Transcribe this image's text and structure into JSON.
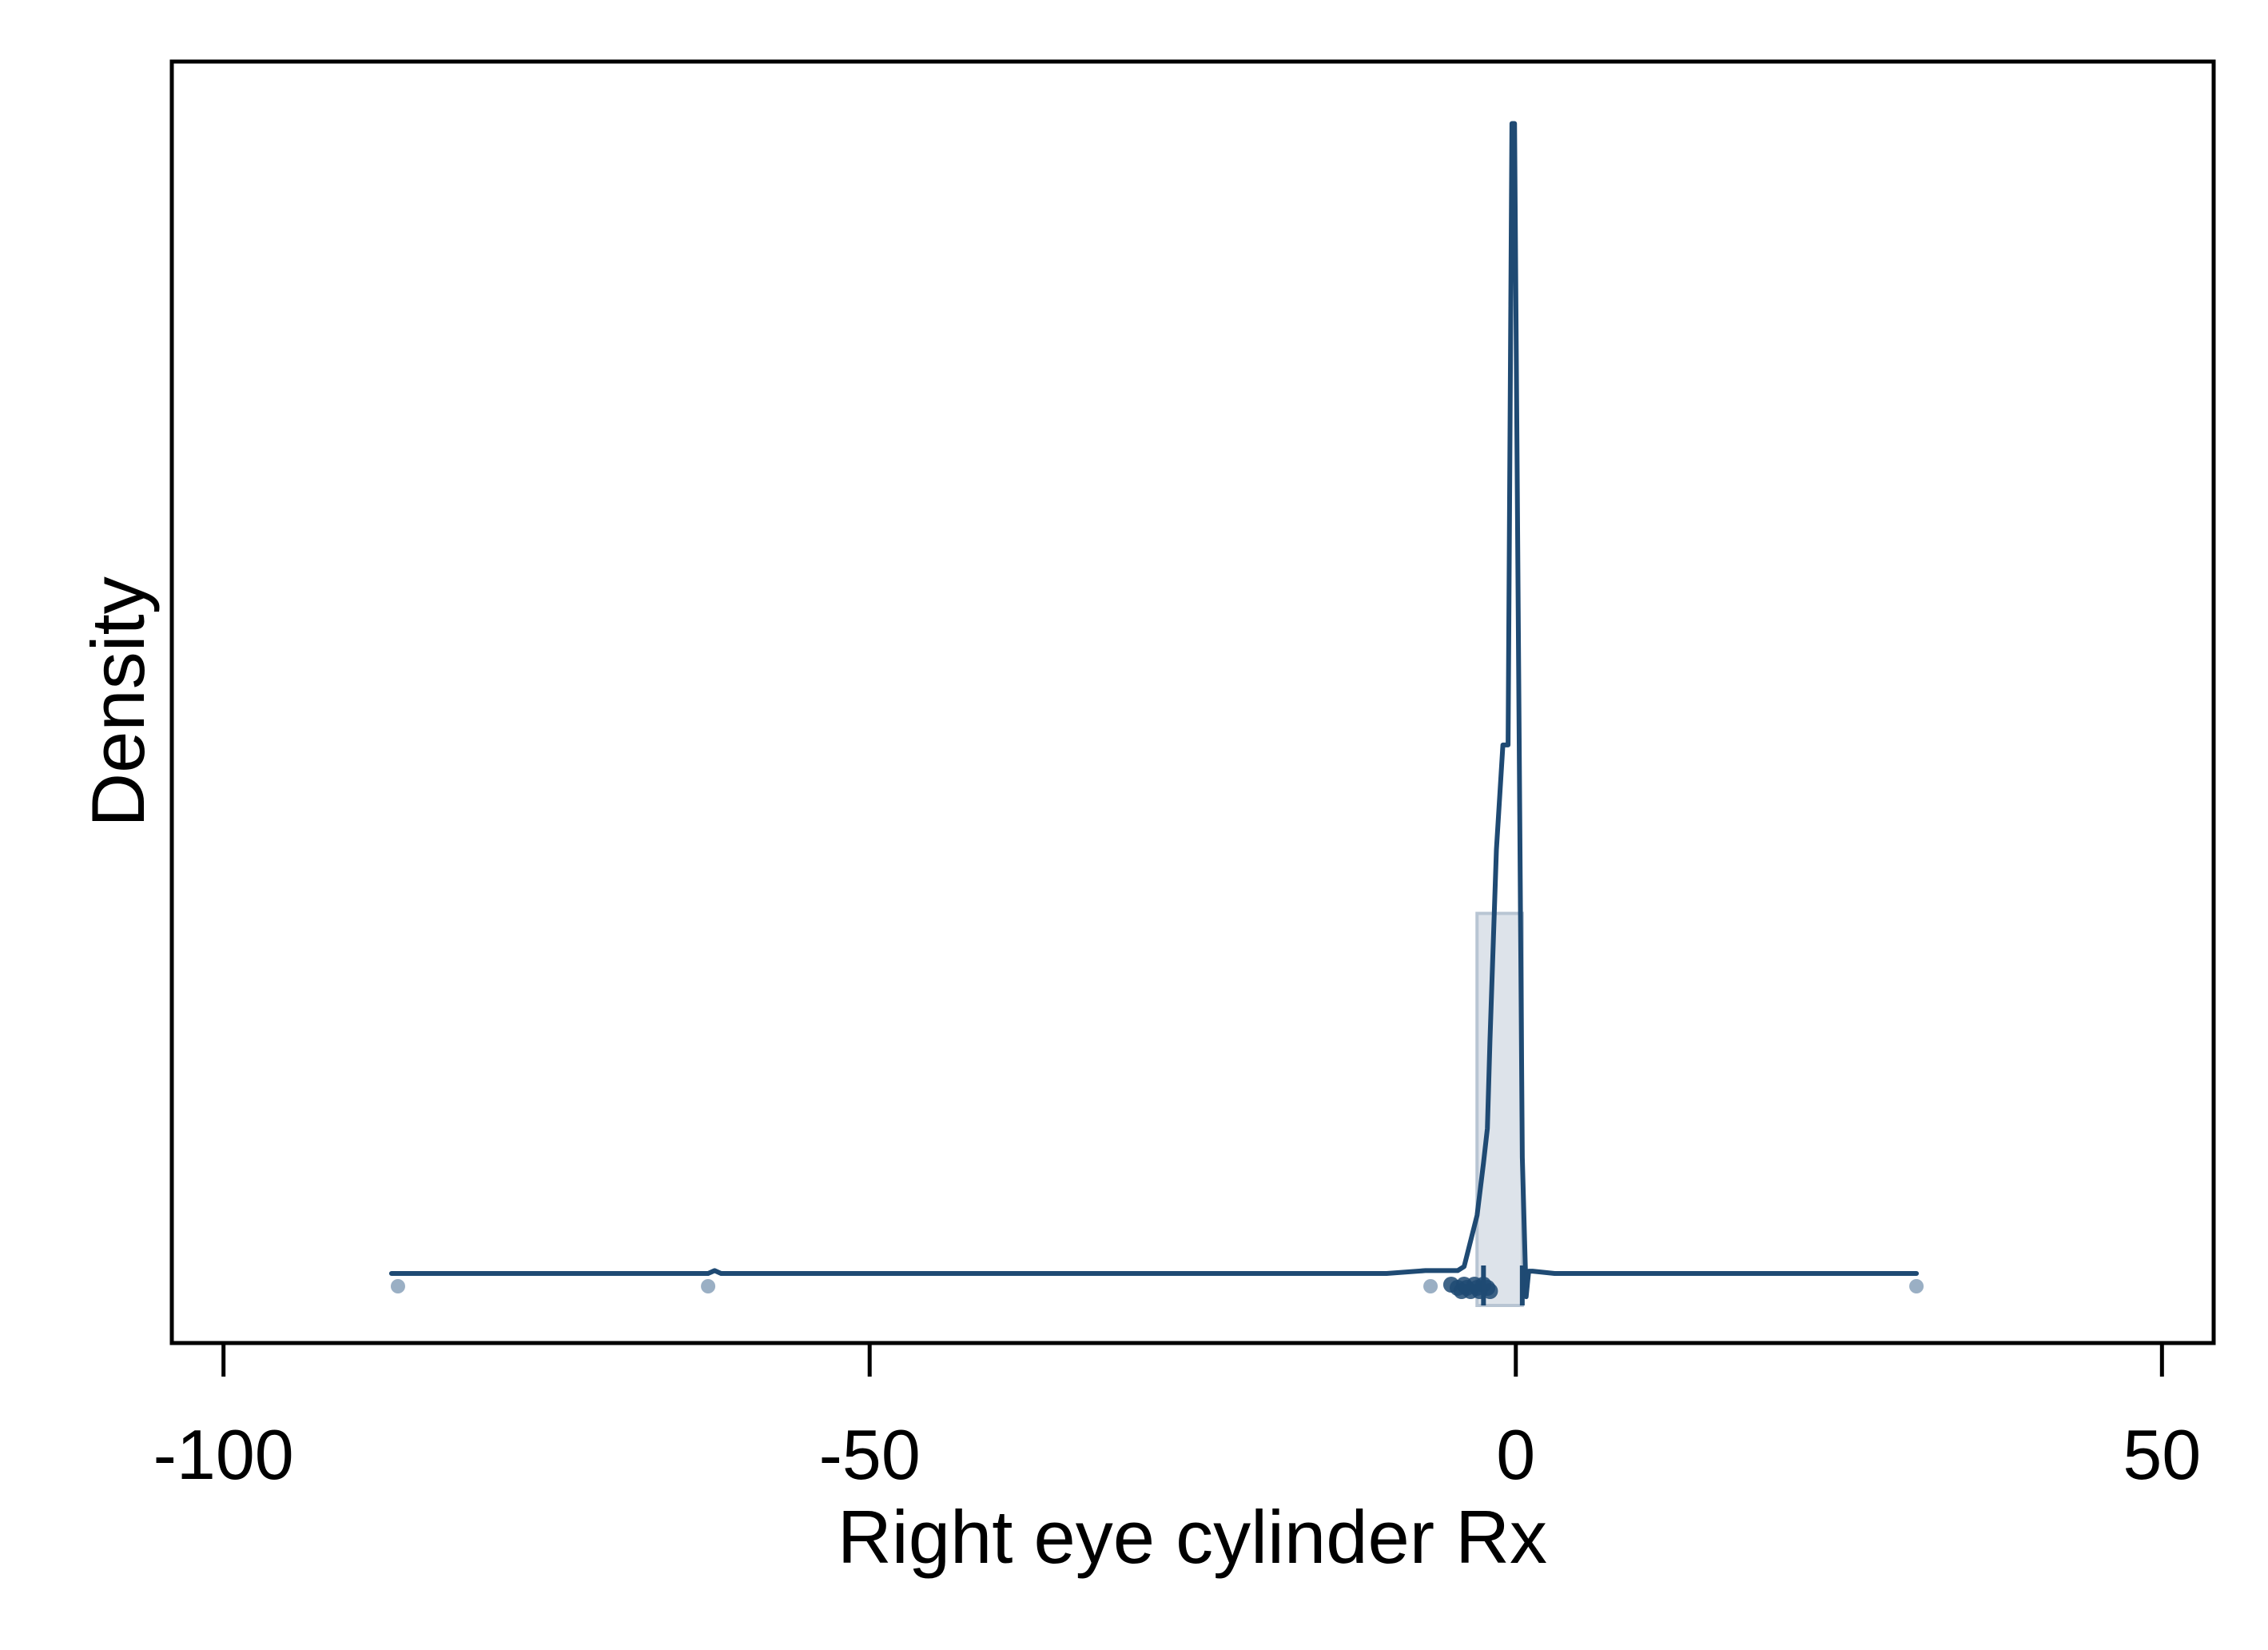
{
  "chart_data": {
    "type": "histogram-density",
    "title": "",
    "xlabel": "Right eye cylinder Rx",
    "ylabel": "Density",
    "xlim": [
      -104,
      54
    ],
    "ylim": [
      0,
      1
    ],
    "x_ticks": [
      -100,
      -50,
      0,
      50
    ],
    "y_tick_labels_shown": false,
    "grid": false,
    "legend": "none",
    "colors": {
      "line": "#1f4a73",
      "bar_fill": "#dde3ea",
      "bar_stroke": "#b8c5d3",
      "outlier": "#9aafc4",
      "rug": "#1f4a73"
    },
    "histogram": [
      {
        "x0": -3.0,
        "x1": 0.5,
        "density": 0.31
      }
    ],
    "kde": {
      "x": [
        -87,
        -62.5,
        -62,
        -61.5,
        -10,
        -7,
        -5.5,
        -4.5,
        -4.0,
        -3.0,
        -2.5,
        -2.2,
        -2.0,
        -1.5,
        -1.0,
        -0.6,
        -0.3,
        -0.1,
        0.5,
        0.8,
        1.0,
        1.3,
        3,
        31
      ],
      "y": [
        0.0,
        0.0,
        0.0025,
        0.0,
        0.0,
        0.0025,
        0.0025,
        0.0025,
        0.006,
        0.05,
        0.095,
        0.125,
        0.2,
        0.365,
        0.455,
        0.455,
        0.99,
        0.99,
        0.1,
        -0.02,
        0.002,
        0.002,
        0.0,
        0.0
      ]
    },
    "outliers": [
      -86.5,
      -62.5,
      -6.6,
      31
    ],
    "rug": [
      -5.0,
      -4.5,
      -4.2,
      -4.0,
      -3.8,
      -3.5,
      -3.2,
      -3.0,
      -2.8,
      -2.5,
      -2.2,
      -2.0
    ]
  }
}
